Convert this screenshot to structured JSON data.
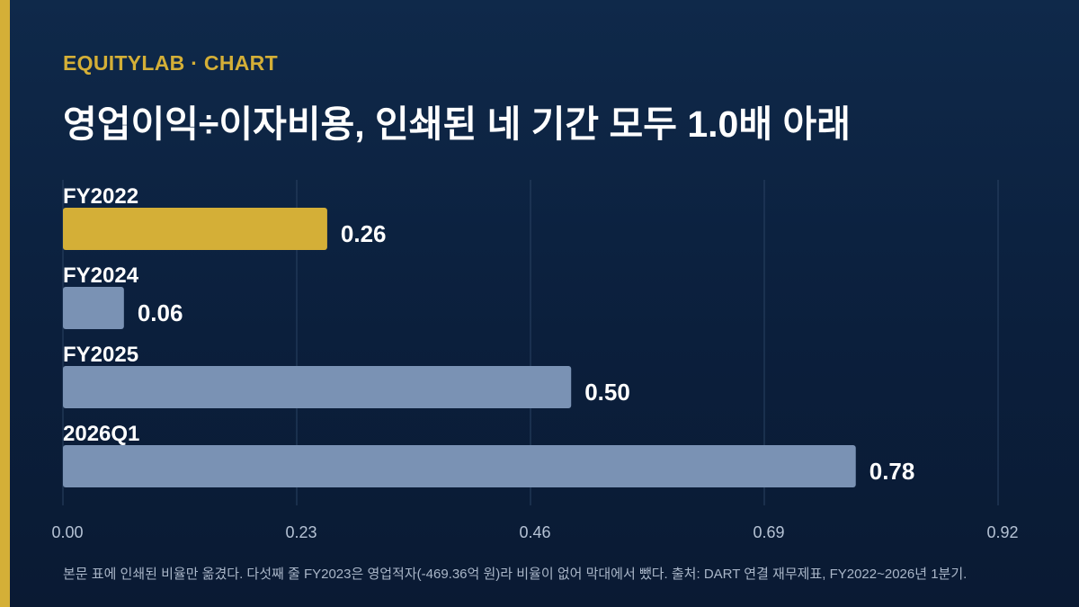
{
  "header": {
    "brand": "EQUITYLAB · CHART",
    "title": "영업이익÷이자비용, 인쇄된 네 기간 모두 1.0배 아래"
  },
  "footer": {
    "note": "본문 표에 인쇄된 비율만 옮겼다. 다섯째 줄 FY2023은 영업적자(-469.36억 원)라 비율이 없어 막대에서 뺐다. 출처: DART 연결 재무제표, FY2022~2026년 1분기."
  },
  "colors": {
    "accent": "#d4af37",
    "bar": "#7a92b4",
    "gridline": "#2a4262",
    "tick": "#b5c2d4"
  },
  "chart_data": {
    "type": "bar",
    "orientation": "horizontal",
    "categories": [
      "FY2022",
      "FY2024",
      "FY2025",
      "2026Q1"
    ],
    "values": [
      0.26,
      0.06,
      0.5,
      0.78
    ],
    "value_labels": [
      "0.26",
      "0.06",
      "0.50",
      "0.78"
    ],
    "highlighted": "FY2022",
    "xlim": [
      0,
      0.92
    ],
    "xticks": [
      "0.00",
      "0.23",
      "0.46",
      "0.69",
      "0.92"
    ],
    "grid": true
  }
}
